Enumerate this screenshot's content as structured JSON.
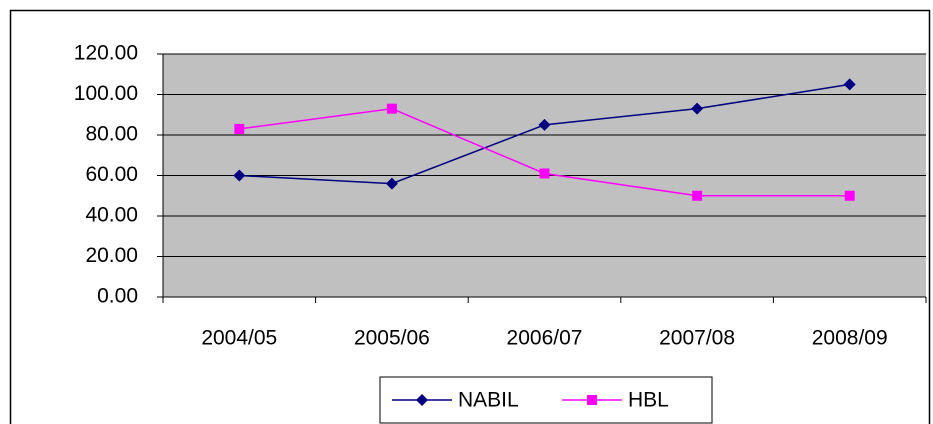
{
  "chart_data": {
    "type": "line",
    "categories": [
      "2004/05",
      "2005/06",
      "2006/07",
      "2007/08",
      "2008/09"
    ],
    "series": [
      {
        "name": "NABIL",
        "color": "#000080",
        "marker": "diamond",
        "values": [
          60,
          56,
          85,
          93,
          105
        ]
      },
      {
        "name": "HBL",
        "color": "#ff00ff",
        "marker": "square",
        "values": [
          83,
          93,
          61,
          50,
          50
        ]
      }
    ],
    "ylim": [
      0,
      120
    ],
    "yticks": [
      {
        "value": 0,
        "label": "0.00"
      },
      {
        "value": 20,
        "label": "20.00"
      },
      {
        "value": 40,
        "label": "40.00"
      },
      {
        "value": 60,
        "label": "60.00"
      },
      {
        "value": 80,
        "label": "80.00"
      },
      {
        "value": 100,
        "label": "100.00"
      },
      {
        "value": 120,
        "label": "120.00"
      }
    ],
    "grid": true,
    "legend": "bottom"
  }
}
